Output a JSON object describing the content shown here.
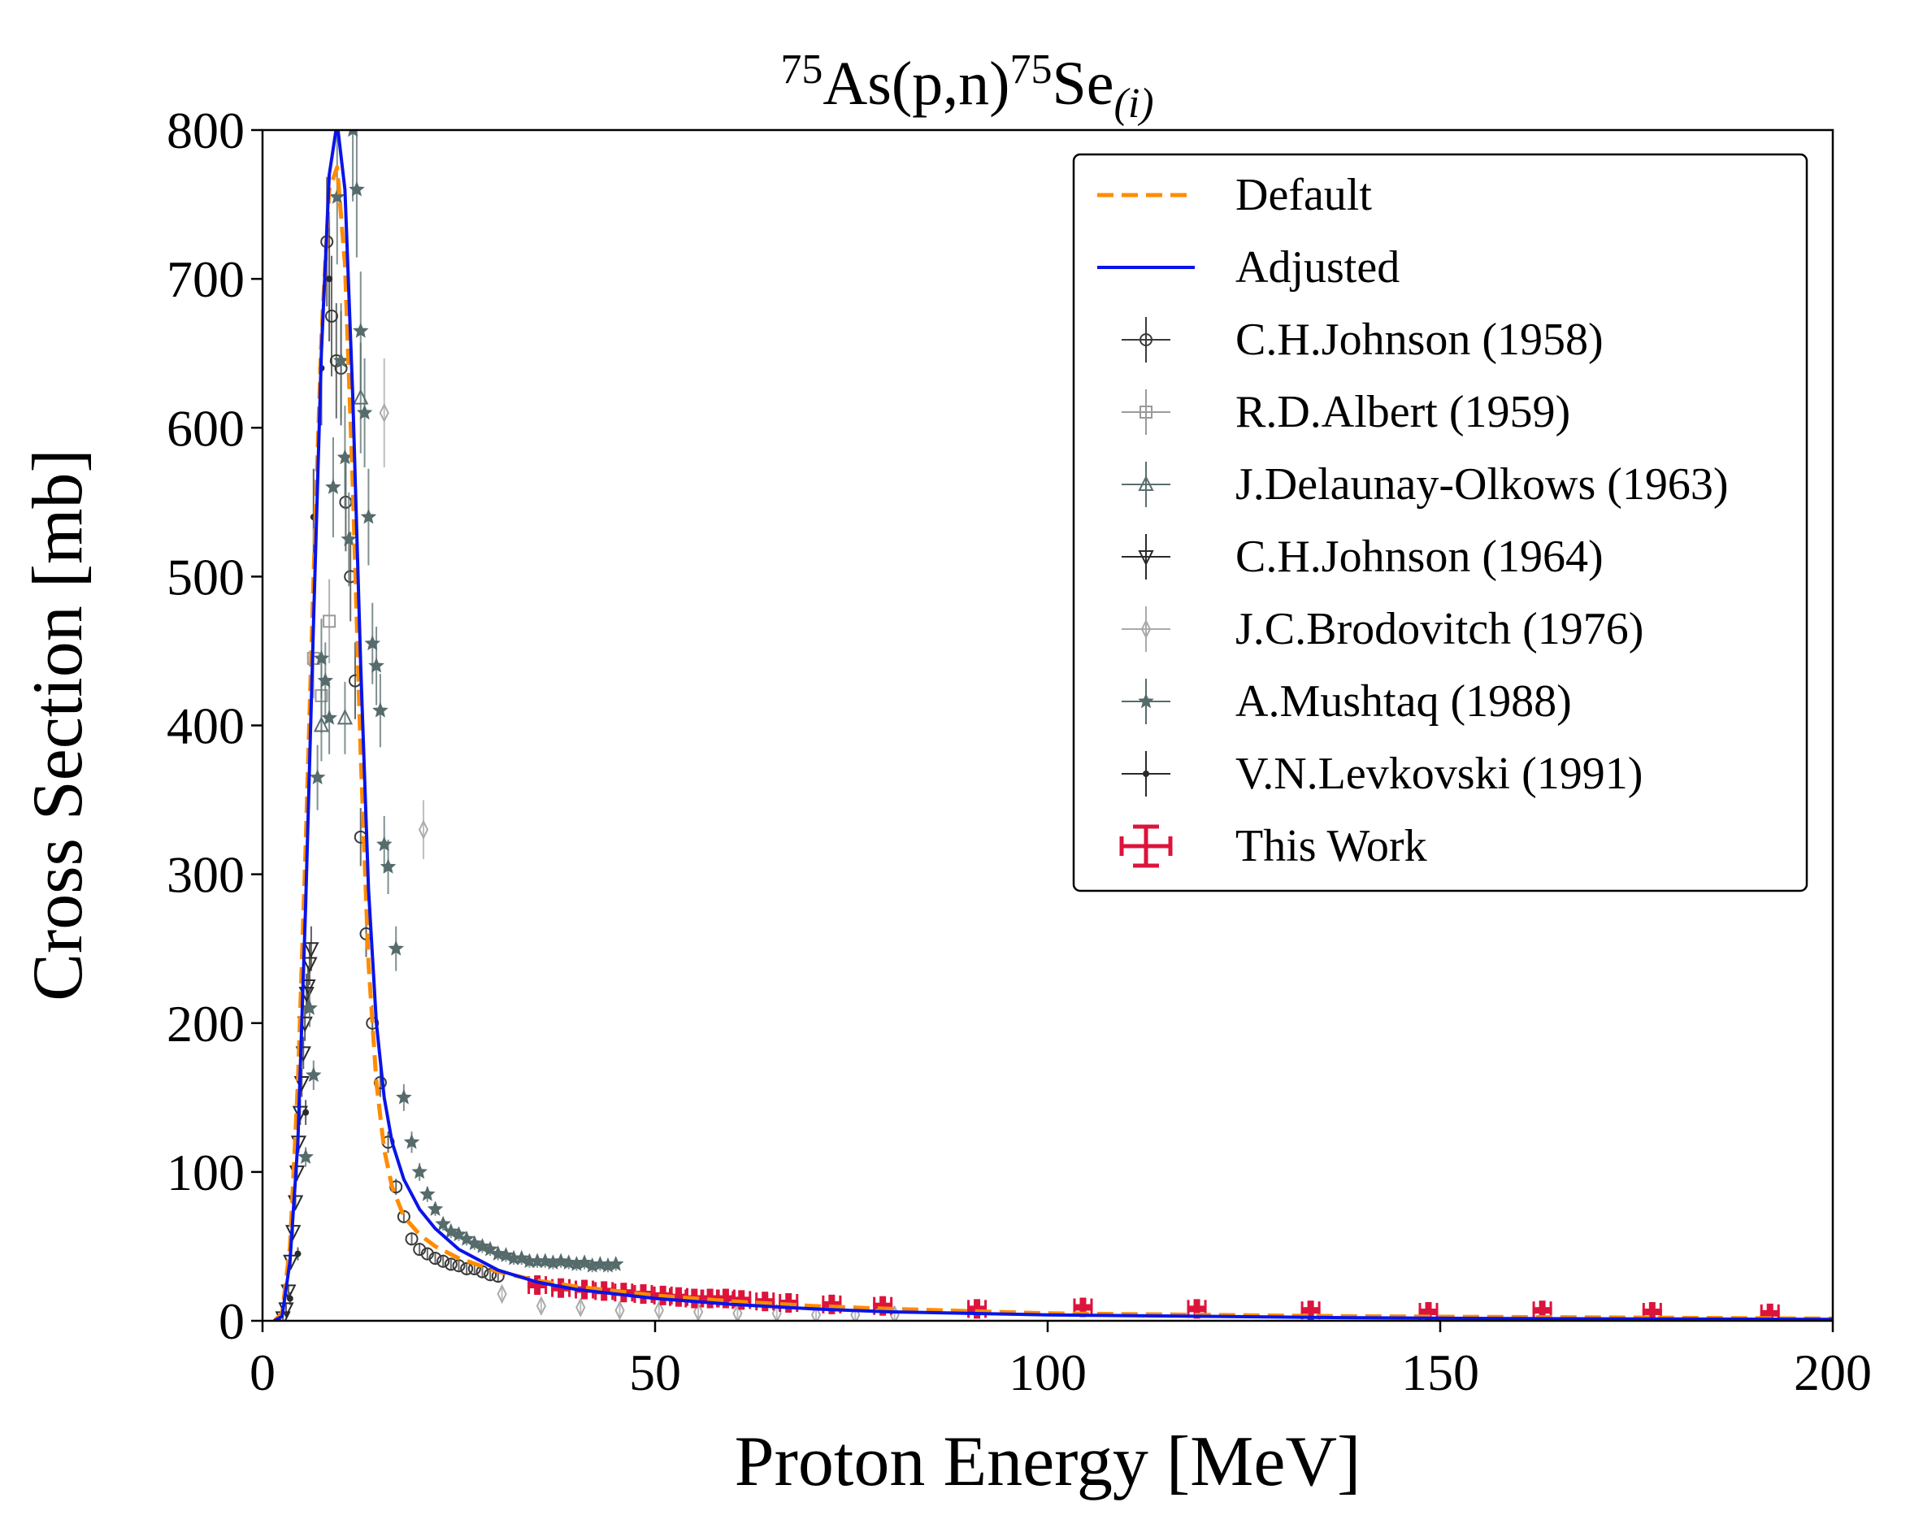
{
  "chart_data": {
    "type": "line",
    "title": {
      "target_mass": "75",
      "target": "As",
      "channel": "(p,n)",
      "product_mass": "75",
      "product": "Se",
      "product_state": "(i)"
    },
    "xlabel": "Proton Energy [MeV]",
    "ylabel": "Cross Section [mb]",
    "xlim": [
      0,
      200
    ],
    "ylim": [
      0,
      800
    ],
    "xticks": [
      0,
      50,
      100,
      150,
      200
    ],
    "yticks": [
      0,
      100,
      200,
      300,
      400,
      500,
      600,
      700,
      800
    ],
    "grid": false,
    "legend_position": "top-right",
    "series": [
      {
        "name": "Default",
        "kind": "line",
        "color": "#ff8c00",
        "dash": true,
        "x": [
          1.5,
          2.5,
          3.5,
          4.5,
          5.5,
          6.5,
          7.5,
          8.5,
          9.5,
          10.5,
          11.5,
          12.5,
          13.5,
          14.5,
          15.5,
          16.5,
          18,
          20,
          22,
          25,
          30,
          35,
          40,
          50,
          60,
          70,
          80,
          100,
          120,
          140,
          160,
          180,
          200
        ],
        "y": [
          0,
          5,
          50,
          160,
          320,
          500,
          660,
          760,
          775,
          710,
          560,
          380,
          240,
          160,
          115,
          90,
          70,
          58,
          50,
          42,
          33,
          27,
          23,
          17,
          13,
          10,
          8,
          5,
          4,
          3,
          2.5,
          2,
          1.5
        ]
      },
      {
        "name": "Adjusted",
        "kind": "line",
        "color": "#0a14e8",
        "dash": false,
        "x": [
          1.5,
          2.5,
          3.5,
          4.5,
          5.5,
          6.5,
          7.5,
          8.5,
          9.5,
          10.5,
          11.5,
          12.5,
          13.5,
          14.5,
          15.5,
          16.5,
          18,
          20,
          22,
          25,
          30,
          35,
          40,
          50,
          60,
          70,
          80,
          100,
          120,
          140,
          160,
          180,
          200
        ],
        "y": [
          0,
          3,
          40,
          120,
          280,
          470,
          650,
          770,
          805,
          760,
          620,
          440,
          290,
          200,
          150,
          120,
          95,
          75,
          62,
          48,
          34,
          26,
          21,
          15,
          11,
          8,
          6,
          4,
          3,
          2,
          1.5,
          1.2,
          1
        ]
      },
      {
        "name": "C.H.Johnson (1958)",
        "kind": "points",
        "marker": "circle",
        "color": "#3a3a3a",
        "x": [
          8.2,
          8.8,
          9.4,
          10.0,
          10.6,
          11.2,
          11.8,
          12.5,
          13.2,
          14.0,
          15.0,
          16.0,
          17.0,
          18.0,
          19.0,
          20.0,
          21.0,
          22.0,
          23.0,
          24.0,
          25.0,
          26.0,
          27.0,
          28.0,
          29.0,
          30.0
        ],
        "y": [
          725,
          675,
          645,
          640,
          550,
          500,
          430,
          325,
          260,
          200,
          160,
          120,
          90,
          70,
          55,
          48,
          45,
          42,
          40,
          38,
          37,
          35,
          35,
          33,
          31,
          30
        ]
      },
      {
        "name": "R.D.Albert (1959)",
        "kind": "points",
        "marker": "square",
        "color": "#9a9a9a",
        "x": [
          6.5,
          7.5,
          8.5
        ],
        "y": [
          445,
          420,
          470
        ]
      },
      {
        "name": "J.Delaunay-Olkows (1963)",
        "kind": "points",
        "marker": "triangle-up",
        "color": "#5a6e6e",
        "x": [
          7.5,
          10.5,
          12.5
        ],
        "y": [
          400,
          405,
          620
        ]
      },
      {
        "name": "C.H.Johnson (1964)",
        "kind": "points",
        "marker": "triangle-down",
        "color": "#2a2a2a",
        "x": [
          2.6,
          3.0,
          3.3,
          3.6,
          3.9,
          4.2,
          4.4,
          4.6,
          4.8,
          5.0,
          5.2,
          5.4,
          5.6,
          5.8,
          6.0,
          6.2
        ],
        "y": [
          2,
          8,
          20,
          40,
          60,
          80,
          100,
          120,
          140,
          160,
          180,
          200,
          220,
          225,
          240,
          250
        ]
      },
      {
        "name": "J.C.Brodovitch (1976)",
        "kind": "points",
        "marker": "diamond",
        "color": "#aaaaaa",
        "x": [
          15.5,
          20.5,
          30.5,
          35.5,
          40.5,
          45.5,
          50.5,
          55.5,
          60.5,
          65.5,
          70.5,
          75.5,
          80.5
        ],
        "y": [
          610,
          330,
          18,
          10,
          9,
          7,
          7,
          6,
          5,
          5,
          4,
          4,
          4
        ]
      },
      {
        "name": "A.Mushtaq (1988)",
        "kind": "points",
        "marker": "star",
        "color": "#566b6b",
        "x": [
          5.5,
          6.0,
          6.5,
          7.0,
          7.5,
          8.0,
          8.5,
          9.0,
          9.5,
          10.0,
          10.5,
          11.0,
          11.5,
          12.0,
          12.5,
          13.0,
          13.5,
          14.0,
          14.5,
          15.0,
          15.5,
          16.0,
          17.0,
          18.0,
          19.0,
          20.0,
          21.0,
          22.0,
          23.0,
          24.0,
          25.0,
          26.0,
          27.0,
          28.0,
          29.0,
          30.0,
          31.0,
          32.0,
          33.0,
          34.0,
          35.0,
          36.0,
          37.0,
          38.0,
          39.0,
          40.0,
          41.0,
          42.0,
          43.0,
          44.0,
          45.0
        ],
        "y": [
          110,
          210,
          165,
          365,
          445,
          430,
          405,
          560,
          755,
          645,
          580,
          525,
          800,
          760,
          665,
          610,
          540,
          455,
          440,
          410,
          320,
          305,
          250,
          150,
          120,
          100,
          85,
          75,
          65,
          60,
          58,
          55,
          52,
          50,
          48,
          45,
          44,
          42,
          42,
          40,
          40,
          40,
          39,
          40,
          39,
          38,
          39,
          37,
          38,
          37,
          38
        ]
      },
      {
        "name": "V.N.Levkovski (1991)",
        "kind": "points",
        "marker": "dot",
        "color": "#2a2a2a",
        "x": [
          3.5,
          4.5,
          5.5,
          6.5,
          7.5,
          8.5
        ],
        "y": [
          15,
          45,
          140,
          540,
          640,
          700
        ]
      },
      {
        "name": "This Work",
        "kind": "errorbar",
        "marker": "thick-cross",
        "color": "#dc143c",
        "x": [
          35,
          38,
          41,
          43.5,
          46,
          48.5,
          51,
          53,
          55,
          57,
          59,
          61,
          64,
          67,
          72.5,
          79,
          91,
          104.5,
          119,
          133.5,
          148.5,
          163,
          177,
          192
        ],
        "y": [
          24,
          22,
          21,
          20,
          19,
          18,
          17,
          16,
          15,
          15,
          15,
          14,
          13,
          12,
          11,
          10,
          8,
          9,
          8,
          7,
          6,
          7,
          6,
          5
        ]
      }
    ]
  }
}
